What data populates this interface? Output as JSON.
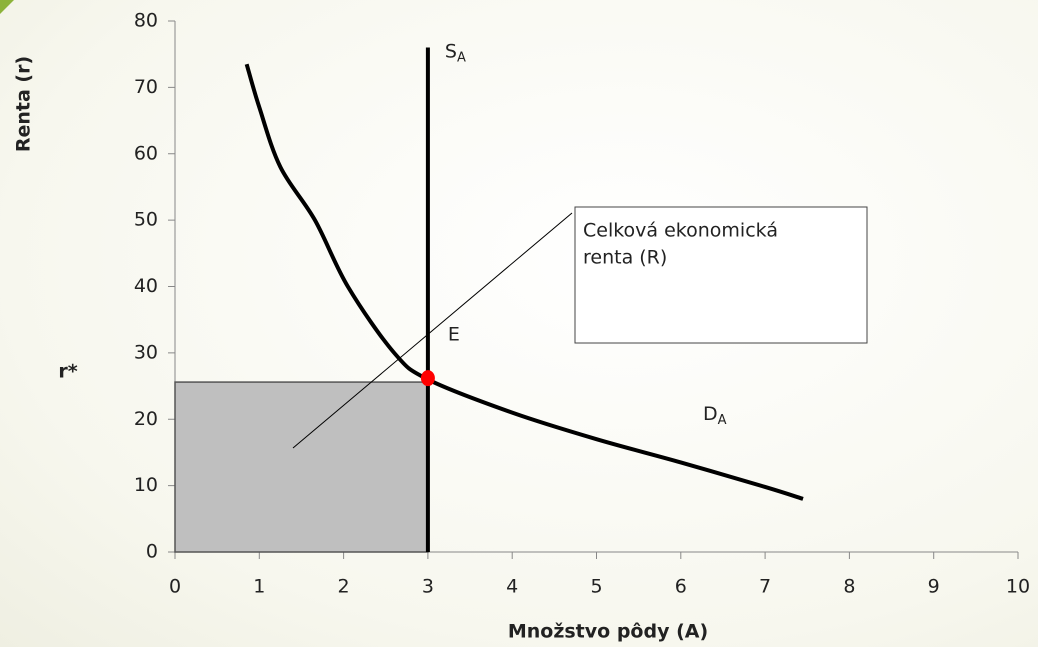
{
  "chart_data": {
    "type": "rent-diagram",
    "x_label": "Množstvo pôdy (A)",
    "y_label": "Renta  (r)",
    "xlim": [
      0,
      10
    ],
    "xticks": [
      0,
      1,
      2,
      3,
      4,
      5,
      6,
      7,
      8,
      9,
      10
    ],
    "ylim": [
      0,
      80
    ],
    "yticks": [
      0,
      10,
      20,
      30,
      40,
      50,
      60,
      70,
      80
    ],
    "demand": {
      "label": {
        "main": "D",
        "sub": "A"
      },
      "color": "#000000",
      "x": [
        0.85,
        1,
        1.25,
        1.66,
        2.05,
        2.6,
        3,
        4,
        5,
        6,
        7,
        7.45
      ],
      "values": [
        73.5,
        67,
        58,
        50,
        40,
        30,
        26,
        21,
        17,
        13.5,
        9.8,
        8
      ]
    },
    "supply": {
      "label": {
        "main": "S",
        "sub": "A"
      },
      "color": "#000000",
      "x": [
        3,
        3
      ],
      "values": [
        0,
        76
      ]
    },
    "equilibrium": {
      "label": "E",
      "color": "#ff0000",
      "x": 3,
      "y": 26.2
    },
    "rent_area": {
      "color": "#bfbfbf",
      "x": [
        0,
        3
      ],
      "y": [
        0,
        25.6
      ]
    },
    "r_star_label": "r*",
    "annotation": [
      "Celková ekonomická",
      "renta (R)"
    ]
  }
}
